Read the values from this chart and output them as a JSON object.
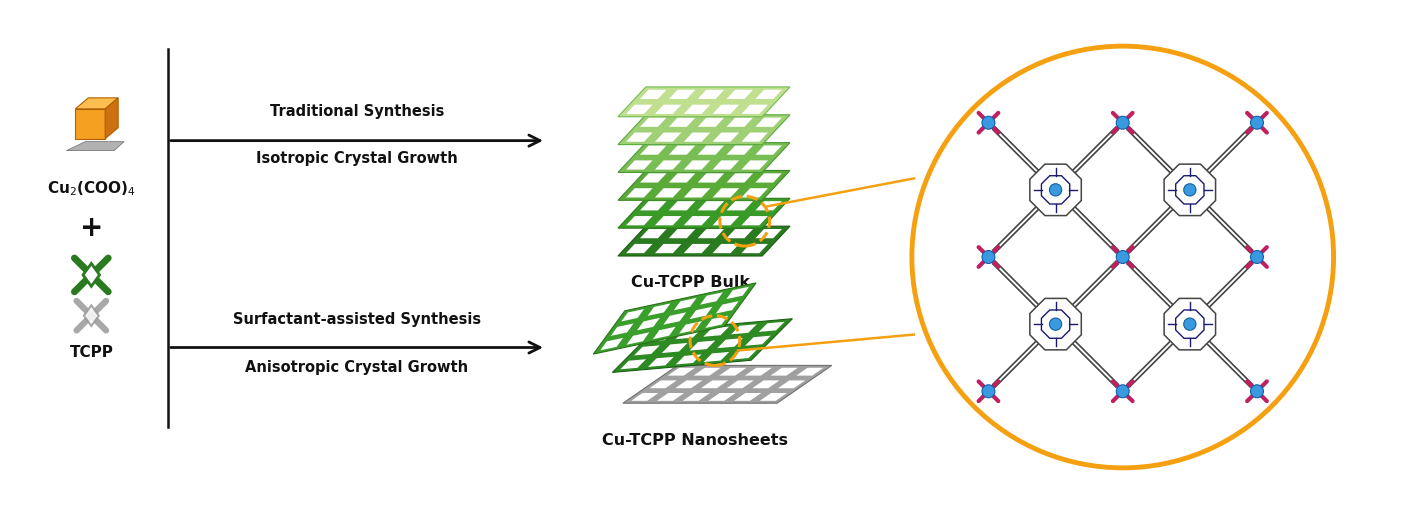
{
  "bg_color": "#ffffff",
  "text_color": "#111111",
  "orange_color": "#F5A010",
  "green_dark": "#2A7A20",
  "green_mid": "#3A9A28",
  "green_light1": "#8CC870",
  "green_light2": "#B4D990",
  "green_light3": "#CEEAA0",
  "gray_dark": "#707070",
  "gray_mid": "#999999",
  "gray_light": "#BBBBBB",
  "blue_node": "#3A9AE0",
  "pink_arm": "#C02060",
  "linker_color": "#555555",
  "porphyrin_inner": "#1a1a6e",
  "label_traditional": "Traditional Synthesis",
  "label_isotropic": "Isotropic Crystal Growth",
  "label_surfactant": "Surfactant-assisted Synthesis",
  "label_anisotropic": "Anisotropic Crystal Growth",
  "label_bulk": "Cu-TCPP Bulk",
  "label_nanosheets": "Cu-TCPP Nanosheets",
  "label_cu": "Cu₂(COO)₄",
  "label_tcpp": "TCPP",
  "label_plus": "+"
}
